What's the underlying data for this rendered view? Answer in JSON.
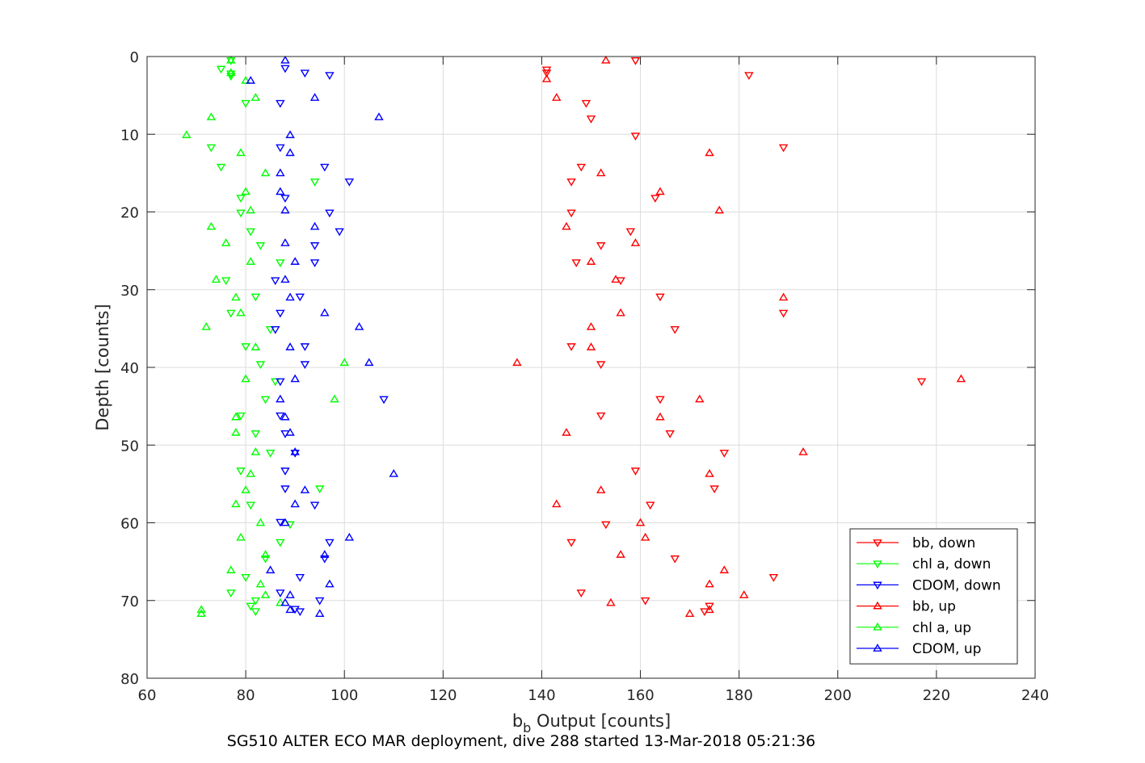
{
  "caption": "SG510 ALTER ECO MAR deployment, dive 288 started 13-Mar-2018 05:21:36",
  "chart_data": {
    "type": "scatter",
    "title": "",
    "xlabel_main": "b",
    "xlabel_sub": "b",
    "xlabel_rest": " Output [counts]",
    "ylabel": "Depth [counts]",
    "xlim": [
      60,
      240
    ],
    "ylim": [
      0,
      80
    ],
    "y_reversed": true,
    "grid": true,
    "legend_position": "bottom-right",
    "x_ticks": [
      "60",
      "80",
      "100",
      "120",
      "140",
      "160",
      "180",
      "200",
      "220",
      "240"
    ],
    "y_ticks": [
      "0",
      "10",
      "20",
      "30",
      "40",
      "50",
      "60",
      "70",
      "80"
    ],
    "series": [
      {
        "name": "bb, down",
        "color": "#ff0000",
        "marker": "triangle-down",
        "points": [
          [
            159,
            0.5
          ],
          [
            141,
            1.7
          ],
          [
            141,
            2.1
          ],
          [
            182,
            2.4
          ],
          [
            149,
            6
          ],
          [
            150,
            8
          ],
          [
            159,
            10.2
          ],
          [
            189,
            11.7
          ],
          [
            148,
            14.2
          ],
          [
            146,
            16.1
          ],
          [
            163,
            18.2
          ],
          [
            146,
            20.1
          ],
          [
            158,
            22.5
          ],
          [
            152,
            24.3
          ],
          [
            147,
            26.5
          ],
          [
            156,
            28.8
          ],
          [
            164,
            30.9
          ],
          [
            189,
            33
          ],
          [
            167,
            35.1
          ],
          [
            146,
            37.3
          ],
          [
            152,
            39.6
          ],
          [
            217,
            41.8
          ],
          [
            164,
            44.1
          ],
          [
            152,
            46.2
          ],
          [
            166,
            48.5
          ],
          [
            177,
            51
          ],
          [
            159,
            53.3
          ],
          [
            175,
            55.6
          ],
          [
            162,
            57.7
          ],
          [
            153,
            60.2
          ],
          [
            146,
            62.5
          ],
          [
            167,
            64.6
          ],
          [
            187,
            67
          ],
          [
            148,
            69
          ],
          [
            161,
            70
          ],
          [
            174,
            70.7
          ],
          [
            173,
            71.4
          ]
        ]
      },
      {
        "name": "chl a, down",
        "color": "#00ff00",
        "marker": "triangle-down",
        "points": [
          [
            77,
            0.5
          ],
          [
            75,
            1.6
          ],
          [
            77,
            2.2
          ],
          [
            77,
            2.5
          ],
          [
            80,
            6
          ],
          [
            73,
            11.7
          ],
          [
            75,
            14.2
          ],
          [
            94,
            16.1
          ],
          [
            79,
            18.2
          ],
          [
            79,
            20.1
          ],
          [
            81,
            22.5
          ],
          [
            83,
            24.3
          ],
          [
            87,
            26.5
          ],
          [
            76,
            28.8
          ],
          [
            82,
            30.9
          ],
          [
            77,
            33
          ],
          [
            85,
            35.1
          ],
          [
            80,
            37.3
          ],
          [
            83,
            39.6
          ],
          [
            86,
            41.8
          ],
          [
            84,
            44.1
          ],
          [
            79,
            46.2
          ],
          [
            82,
            48.5
          ],
          [
            85,
            51
          ],
          [
            79,
            53.3
          ],
          [
            95,
            55.6
          ],
          [
            81,
            57.7
          ],
          [
            89,
            60.2
          ],
          [
            87,
            62.5
          ],
          [
            84,
            64.6
          ],
          [
            80,
            67
          ],
          [
            77,
            69
          ],
          [
            82,
            70
          ],
          [
            81,
            70.7
          ],
          [
            82,
            71.4
          ]
        ]
      },
      {
        "name": "CDOM, down",
        "color": "#0000ff",
        "marker": "triangle-down",
        "points": [
          [
            88,
            1.5
          ],
          [
            92,
            2.1
          ],
          [
            97,
            2.4
          ],
          [
            87,
            6
          ],
          [
            87,
            11.7
          ],
          [
            96,
            14.2
          ],
          [
            101,
            16.1
          ],
          [
            88,
            18.2
          ],
          [
            97,
            20.1
          ],
          [
            99,
            22.5
          ],
          [
            94,
            24.3
          ],
          [
            94,
            26.5
          ],
          [
            86,
            28.8
          ],
          [
            91,
            30.9
          ],
          [
            87,
            33
          ],
          [
            86,
            35.1
          ],
          [
            92,
            37.3
          ],
          [
            92,
            39.6
          ],
          [
            87,
            41.8
          ],
          [
            108,
            44.1
          ],
          [
            87,
            46.2
          ],
          [
            88,
            48.5
          ],
          [
            90,
            51
          ],
          [
            88,
            53.3
          ],
          [
            88,
            55.6
          ],
          [
            94,
            57.7
          ],
          [
            87,
            59.9
          ],
          [
            97,
            62.5
          ],
          [
            96,
            64.6
          ],
          [
            91,
            67
          ],
          [
            87,
            69
          ],
          [
            95,
            70
          ],
          [
            90,
            71.1
          ],
          [
            91,
            71.4
          ]
        ]
      },
      {
        "name": "bb, up",
        "color": "#ff0000",
        "marker": "triangle-up",
        "points": [
          [
            153,
            0.5
          ],
          [
            141,
            2.9
          ],
          [
            143,
            5.3
          ],
          [
            174,
            12.4
          ],
          [
            152,
            15
          ],
          [
            164,
            17.4
          ],
          [
            176,
            19.8
          ],
          [
            145,
            21.9
          ],
          [
            159,
            24
          ],
          [
            150,
            26.4
          ],
          [
            155,
            28.7
          ],
          [
            189,
            31
          ],
          [
            156,
            33
          ],
          [
            150,
            34.8
          ],
          [
            150,
            37.4
          ],
          [
            135,
            39.4
          ],
          [
            225,
            41.5
          ],
          [
            172,
            44.1
          ],
          [
            164,
            46.4
          ],
          [
            145,
            48.4
          ],
          [
            193,
            50.9
          ],
          [
            174,
            53.7
          ],
          [
            152,
            55.8
          ],
          [
            143,
            57.6
          ],
          [
            160,
            60
          ],
          [
            161,
            61.9
          ],
          [
            156,
            64.1
          ],
          [
            177,
            66.1
          ],
          [
            174,
            67.9
          ],
          [
            181,
            69.3
          ],
          [
            154,
            70.3
          ],
          [
            174,
            71.2
          ],
          [
            170,
            71.7
          ]
        ]
      },
      {
        "name": "chl a, up",
        "color": "#00ff00",
        "marker": "triangle-up",
        "points": [
          [
            77,
            0.5
          ],
          [
            77,
            2.1
          ],
          [
            80,
            3.1
          ],
          [
            82,
            5.3
          ],
          [
            73,
            7.8
          ],
          [
            68,
            10.1
          ],
          [
            79,
            12.4
          ],
          [
            84,
            15
          ],
          [
            80,
            17.4
          ],
          [
            81,
            19.8
          ],
          [
            73,
            21.9
          ],
          [
            76,
            24
          ],
          [
            81,
            26.4
          ],
          [
            74,
            28.7
          ],
          [
            78,
            31
          ],
          [
            79,
            33
          ],
          [
            72,
            34.8
          ],
          [
            82,
            37.4
          ],
          [
            100,
            39.4
          ],
          [
            80,
            41.5
          ],
          [
            98,
            44.1
          ],
          [
            78,
            46.4
          ],
          [
            78,
            48.4
          ],
          [
            82,
            50.9
          ],
          [
            81,
            53.7
          ],
          [
            80,
            55.8
          ],
          [
            78,
            57.6
          ],
          [
            83,
            60
          ],
          [
            79,
            61.9
          ],
          [
            84,
            64.1
          ],
          [
            77,
            66.1
          ],
          [
            83,
            67.9
          ],
          [
            84,
            69.3
          ],
          [
            87,
            70.3
          ],
          [
            71,
            71.2
          ],
          [
            71,
            71.7
          ]
        ]
      },
      {
        "name": "CDOM, up",
        "color": "#0000ff",
        "marker": "triangle-up",
        "points": [
          [
            88,
            0.5
          ],
          [
            81,
            3.1
          ],
          [
            94,
            5.3
          ],
          [
            107,
            7.8
          ],
          [
            89,
            10.1
          ],
          [
            89,
            12.4
          ],
          [
            87,
            15
          ],
          [
            87,
            17.4
          ],
          [
            88,
            19.8
          ],
          [
            94,
            21.9
          ],
          [
            88,
            24
          ],
          [
            90,
            26.4
          ],
          [
            88,
            28.7
          ],
          [
            89,
            31
          ],
          [
            96,
            33
          ],
          [
            103,
            34.8
          ],
          [
            89,
            37.4
          ],
          [
            105,
            39.4
          ],
          [
            90,
            41.5
          ],
          [
            87,
            44.1
          ],
          [
            88,
            46.4
          ],
          [
            89,
            48.4
          ],
          [
            90,
            50.9
          ],
          [
            110,
            53.7
          ],
          [
            92,
            55.8
          ],
          [
            90,
            57.6
          ],
          [
            88,
            60
          ],
          [
            101,
            61.9
          ],
          [
            96,
            64.1
          ],
          [
            85,
            66.1
          ],
          [
            97,
            67.9
          ],
          [
            89,
            69.3
          ],
          [
            88,
            70.3
          ],
          [
            89,
            71.2
          ],
          [
            95,
            71.7
          ]
        ]
      }
    ]
  }
}
